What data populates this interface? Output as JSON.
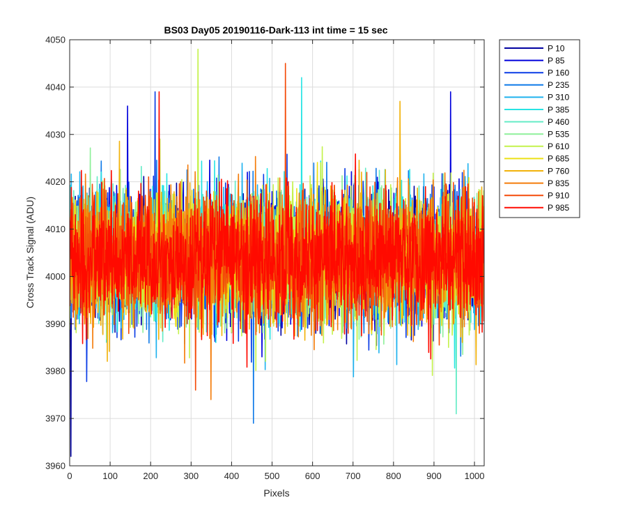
{
  "chart_data": {
    "type": "line",
    "title": "BS03 Day05 20190116-Dark-113 int time = 15 sec",
    "xlabel": "Pixels",
    "ylabel": "Cross Track Signal (ADU)",
    "xlim": [
      0,
      1024
    ],
    "ylim": [
      3960,
      4050
    ],
    "xticks": [
      0,
      100,
      200,
      300,
      400,
      500,
      600,
      700,
      800,
      900,
      1000
    ],
    "yticks": [
      3960,
      3970,
      3980,
      3990,
      4000,
      4010,
      4020,
      4030,
      4040,
      4050
    ],
    "grid": true,
    "legend_position": "outside-top-right",
    "mean_level": 4004,
    "series": [
      {
        "name": "P 10",
        "color": "#0000a0"
      },
      {
        "name": "P 85",
        "color": "#0000dc"
      },
      {
        "name": "P 160",
        "color": "#0a3ce6"
      },
      {
        "name": "P 235",
        "color": "#0f7ae8"
      },
      {
        "name": "P 310",
        "color": "#1eb2ee"
      },
      {
        "name": "P 385",
        "color": "#28e4e4"
      },
      {
        "name": "P 460",
        "color": "#64ecc6"
      },
      {
        "name": "P 535",
        "color": "#8ef09a"
      },
      {
        "name": "P 610",
        "color": "#c4f24c"
      },
      {
        "name": "P 685",
        "color": "#ece016"
      },
      {
        "name": "P 760",
        "color": "#f2b20a"
      },
      {
        "name": "P 835",
        "color": "#f47c0a"
      },
      {
        "name": "P 910",
        "color": "#f44a08"
      },
      {
        "name": "P 985",
        "color": "#ff0a00"
      }
    ],
    "extremes": [
      {
        "series": "P 10",
        "x": 3,
        "y": 3962
      },
      {
        "series": "P 235",
        "x": 454,
        "y": 3969
      },
      {
        "series": "P 460",
        "x": 955,
        "y": 3971
      },
      {
        "series": "P 835",
        "x": 349,
        "y": 3974
      },
      {
        "series": "P 910",
        "x": 311,
        "y": 3976
      },
      {
        "series": "P 610",
        "x": 317,
        "y": 4048
      },
      {
        "series": "P 910",
        "x": 533,
        "y": 4045
      },
      {
        "series": "P 385",
        "x": 573,
        "y": 4042
      },
      {
        "series": "P 160",
        "x": 211,
        "y": 4039
      },
      {
        "series": "P 985",
        "x": 221,
        "y": 4039
      },
      {
        "series": "P 85",
        "x": 941,
        "y": 4039
      },
      {
        "series": "P 760",
        "x": 816,
        "y": 4037
      },
      {
        "series": "P 85",
        "x": 143,
        "y": 4036
      }
    ]
  }
}
